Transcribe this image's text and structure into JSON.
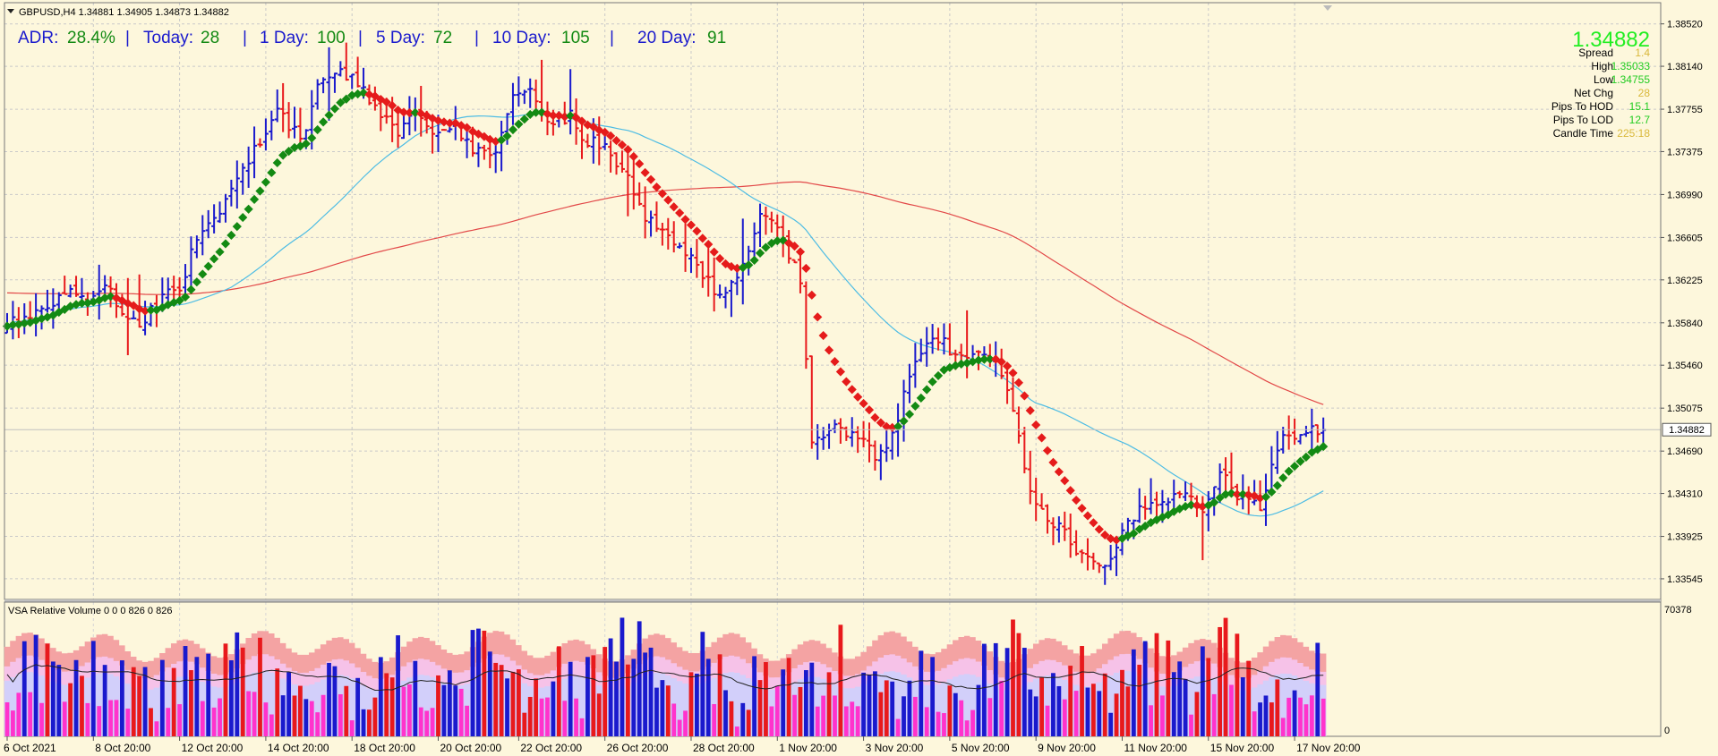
{
  "header": {
    "symbol_line": "GBPUSD,H4  1.34881 1.34905 1.34873 1.34882"
  },
  "adr": {
    "adr_label": "ADR:",
    "adr_value": "28.4%",
    "sep1": "|",
    "today_label": "Today:",
    "today_value": "28",
    "sep2": "|",
    "day1_label": "1 Day:",
    "day1_value": "100",
    "sep3": "|",
    "day5_label": "5 Day:",
    "day5_value": "72",
    "sep4": "|",
    "day10_label": "10 Day:",
    "day10_value": "105",
    "sep5": "|",
    "day20_label": "20 Day:",
    "day20_value": "91"
  },
  "info_panel": {
    "price": "1.34882",
    "rows": [
      {
        "label": "Spread",
        "value": "1.4",
        "color": "#d9b83a"
      },
      {
        "label": "High",
        "value": "1.35033",
        "color": "#22cc22"
      },
      {
        "label": "Low",
        "value": "1.34755",
        "color": "#22cc22"
      },
      {
        "label": "Net Chg",
        "value": "28",
        "color": "#d9b83a"
      },
      {
        "label": "Pips To HOD",
        "value": "15.1",
        "color": "#22cc22"
      },
      {
        "label": "Pips To LOD",
        "value": "12.7",
        "color": "#22cc22"
      },
      {
        "label": "Candle Time",
        "value": "225:18",
        "color": "#d9b83a"
      }
    ]
  },
  "indicator": {
    "label": "VSA Relative Volume 0 0 0 826 0 826",
    "scale_top": "70378",
    "scale_bottom": "0"
  },
  "current_price_label": "1.34882",
  "colors": {
    "background": "#fdf7dc",
    "bull": "#1a1acd",
    "bear": "#e8191c",
    "ma_up": "#138a13",
    "ma_down": "#e51b1b",
    "sky_ma": "#4dbce4",
    "red_ma": "#e24848",
    "vol_pink": "#ff33cc",
    "vol_bands": [
      "#f4a3a3",
      "#f6c2e8",
      "#d2cffa"
    ]
  },
  "chart_data": {
    "type": "candlestick",
    "symbol": "GBPUSD",
    "timeframe": "H4",
    "ylim": [
      1.3336,
      1.3871
    ],
    "y_ticks": [
      "1.38520",
      "1.38140",
      "1.37755",
      "1.37375",
      "1.36990",
      "1.36605",
      "1.36225",
      "1.35840",
      "1.35460",
      "1.35075",
      "1.34690",
      "1.34310",
      "1.33925",
      "1.33545"
    ],
    "x_ticks": [
      "6 Oct 2021",
      "8 Oct 20:00",
      "12 Oct 20:00",
      "14 Oct 20:00",
      "18 Oct 20:00",
      "20 Oct 20:00",
      "22 Oct 20:00",
      "26 Oct 20:00",
      "28 Oct 20:00",
      "1 Nov 20:00",
      "3 Nov 20:00",
      "5 Nov 20:00",
      "9 Nov 20:00",
      "11 Nov 20:00",
      "15 Nov 20:00",
      "17 Nov 20:00"
    ],
    "close_anchors": [
      [
        0,
        1.3585
      ],
      [
        6,
        1.3592
      ],
      [
        10,
        1.3615
      ],
      [
        14,
        1.3605
      ],
      [
        17,
        1.362
      ],
      [
        20,
        1.3597
      ],
      [
        23,
        1.358
      ],
      [
        27,
        1.361
      ],
      [
        30,
        1.3615
      ],
      [
        33,
        1.366
      ],
      [
        37,
        1.3685
      ],
      [
        40,
        1.371
      ],
      [
        44,
        1.3748
      ],
      [
        47,
        1.378
      ],
      [
        51,
        1.3745
      ],
      [
        54,
        1.3795
      ],
      [
        57,
        1.381
      ],
      [
        61,
        1.38
      ],
      [
        64,
        1.3777
      ],
      [
        68,
        1.3755
      ],
      [
        71,
        1.3768
      ],
      [
        74,
        1.3758
      ],
      [
        78,
        1.3765
      ],
      [
        81,
        1.3735
      ],
      [
        85,
        1.374
      ],
      [
        88,
        1.3785
      ],
      [
        91,
        1.379
      ],
      [
        94,
        1.3765
      ],
      [
        98,
        1.377
      ],
      [
        101,
        1.3745
      ],
      [
        104,
        1.3745
      ],
      [
        108,
        1.3715
      ],
      [
        111,
        1.368
      ],
      [
        114,
        1.3665
      ],
      [
        118,
        1.365
      ],
      [
        121,
        1.3625
      ],
      [
        124,
        1.361
      ],
      [
        128,
        1.3635
      ],
      [
        131,
        1.368
      ],
      [
        134,
        1.3665
      ],
      [
        138,
        1.3625
      ],
      [
        140,
        1.348
      ],
      [
        144,
        1.349
      ],
      [
        148,
        1.348
      ],
      [
        151,
        1.3465
      ],
      [
        154,
        1.348
      ],
      [
        158,
        1.3555
      ],
      [
        161,
        1.3575
      ],
      [
        164,
        1.356
      ],
      [
        168,
        1.3555
      ],
      [
        172,
        1.3548
      ],
      [
        174,
        1.3525
      ],
      [
        178,
        1.343
      ],
      [
        181,
        1.3405
      ],
      [
        184,
        1.3395
      ],
      [
        188,
        1.337
      ],
      [
        191,
        1.3362
      ],
      [
        194,
        1.3395
      ],
      [
        198,
        1.342
      ],
      [
        201,
        1.3425
      ],
      [
        204,
        1.3435
      ],
      [
        208,
        1.342
      ],
      [
        211,
        1.345
      ],
      [
        214,
        1.343
      ],
      [
        218,
        1.342
      ],
      [
        221,
        1.3475
      ],
      [
        224,
        1.3485
      ],
      [
        227,
        1.3488
      ],
      [
        229,
        1.3488
      ]
    ],
    "vsa_volume_max": 70378
  }
}
